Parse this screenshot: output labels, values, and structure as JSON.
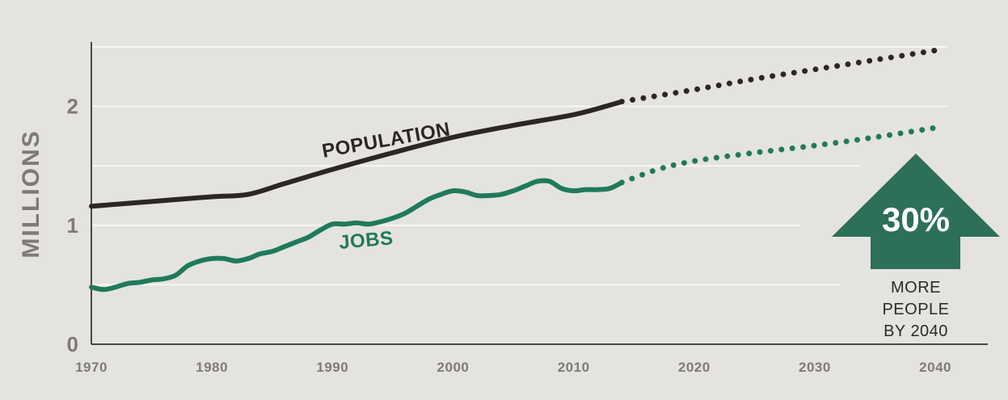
{
  "chart_data": {
    "type": "line",
    "ylabel": "MILLIONS",
    "xlim": [
      1970,
      2041
    ],
    "ylim": [
      0,
      2.5
    ],
    "x_ticks": [
      "1970",
      "1980",
      "1990",
      "2000",
      "2010",
      "2020",
      "2030",
      "2040"
    ],
    "y_ticks": [
      "0",
      "1",
      "2"
    ],
    "grid": true,
    "series": [
      {
        "name": "POPULATION",
        "color": "#2a2724",
        "actual": {
          "x": [
            1970,
            1975,
            1980,
            1983,
            1986,
            1990,
            1995,
            2000,
            2005,
            2010,
            2013,
            2014
          ],
          "y": [
            1.16,
            1.2,
            1.24,
            1.26,
            1.35,
            1.47,
            1.61,
            1.74,
            1.84,
            1.93,
            2.01,
            2.04
          ]
        },
        "projected": {
          "x": [
            2014,
            2020,
            2025,
            2030,
            2035,
            2040
          ],
          "y": [
            2.04,
            2.14,
            2.23,
            2.31,
            2.39,
            2.47
          ]
        }
      },
      {
        "name": "JOBS",
        "color": "#1f7a5b",
        "actual": {
          "x": [
            1970,
            1971,
            1972,
            1973,
            1974,
            1975,
            1976,
            1977,
            1978,
            1979,
            1980,
            1981,
            1982,
            1983,
            1984,
            1985,
            1986,
            1987,
            1988,
            1989,
            1990,
            1991,
            1992,
            1993,
            1994,
            1995,
            1996,
            1997,
            1998,
            1999,
            2000,
            2001,
            2002,
            2003,
            2004,
            2005,
            2006,
            2007,
            2008,
            2009,
            2010,
            2011,
            2012,
            2013,
            2014
          ],
          "y": [
            0.48,
            0.46,
            0.48,
            0.51,
            0.52,
            0.54,
            0.55,
            0.58,
            0.66,
            0.7,
            0.72,
            0.72,
            0.7,
            0.72,
            0.76,
            0.78,
            0.82,
            0.86,
            0.9,
            0.96,
            1.01,
            1.01,
            1.02,
            1.01,
            1.03,
            1.06,
            1.1,
            1.16,
            1.22,
            1.26,
            1.29,
            1.28,
            1.25,
            1.25,
            1.26,
            1.29,
            1.33,
            1.37,
            1.37,
            1.31,
            1.29,
            1.3,
            1.3,
            1.31,
            1.36
          ]
        },
        "projected": {
          "x": [
            2014,
            2017,
            2020,
            2025,
            2030,
            2035,
            2040
          ],
          "y": [
            1.36,
            1.47,
            1.54,
            1.61,
            1.67,
            1.74,
            1.82
          ]
        }
      }
    ],
    "annotations": {
      "population_label": "POPULATION",
      "jobs_label": "JOBS",
      "callout_value": "30%",
      "callout_lines": [
        "MORE",
        "PEOPLE",
        "BY 2040"
      ],
      "callout_color": "#2d6f58"
    }
  }
}
